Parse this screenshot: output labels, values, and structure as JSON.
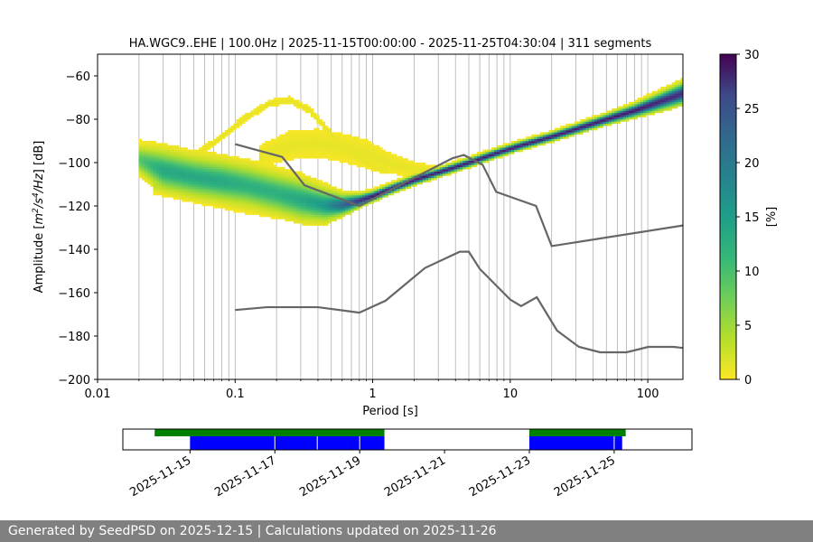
{
  "chart_data": [
    {
      "type": "heatmap",
      "title": "HA.WGC9..EHE | 100.0Hz | 2025-11-15T00:00:00 - 2025-11-25T04:30:04 | 311 segments",
      "xlabel": "Period [s]",
      "ylabel_parts": [
        "Amplitude [",
        "m",
        "2",
        "/",
        "s",
        "4",
        "/",
        "Hz",
        "] [dB]"
      ],
      "xscale": "log",
      "xlim": [
        0.01,
        180
      ],
      "ylim": [
        -200,
        -50
      ],
      "xticks": [
        0.01,
        0.1,
        1,
        10,
        100
      ],
      "xtick_labels": [
        "0.01",
        "0.1",
        "1",
        "10",
        "100"
      ],
      "yticks": [
        -200,
        -180,
        -160,
        -140,
        -120,
        -100,
        -80,
        -60
      ],
      "ytick_labels": [
        "−200",
        "−180",
        "−160",
        "−140",
        "−120",
        "−100",
        "−80",
        "−60"
      ],
      "grid": true,
      "colorbar": {
        "label": "[%]",
        "range": [
          0,
          30
        ],
        "ticks": [
          0,
          5,
          10,
          15,
          20,
          25,
          30
        ],
        "colormap": "viridis_r"
      },
      "noise_model_high": {
        "x": [
          0.1,
          0.22,
          0.32,
          0.8,
          3.8,
          4.6,
          6.3,
          7.9,
          15.4,
          20,
          180
        ],
        "y": [
          -91.5,
          -97.4,
          -110.5,
          -120,
          -98,
          -96.5,
          -101,
          -113.5,
          -120,
          -138.5,
          -129
        ]
      },
      "noise_model_low": {
        "x": [
          0.1,
          0.17,
          0.4,
          0.8,
          1.24,
          2.4,
          4.3,
          5,
          6,
          10,
          12,
          15.6,
          21.9,
          31.6,
          45,
          70,
          101,
          154,
          180
        ],
        "y": [
          -168,
          -166.7,
          -166.7,
          -169.2,
          -163.7,
          -148.6,
          -141.1,
          -141.1,
          -149,
          -163.2,
          -166.2,
          -162.1,
          -177.5,
          -185,
          -187.5,
          -187.5,
          -185,
          -185,
          -185.5
        ]
      },
      "psd_probability": {
        "main_band": {
          "x": [
            0.02,
            0.03,
            0.05,
            0.08,
            0.12,
            0.2,
            0.3,
            0.45,
            0.6,
            0.8,
            1.0,
            1.5,
            2,
            3,
            5,
            8,
            12,
            20,
            30,
            50,
            80,
            120,
            180
          ],
          "y": [
            -98.5,
            -103.5,
            -106.5,
            -108.5,
            -110.5,
            -114,
            -117,
            -119.5,
            -119.5,
            -117.5,
            -115.5,
            -111,
            -108,
            -104.5,
            -100,
            -95.5,
            -92,
            -88,
            -84.5,
            -80,
            -76,
            -72,
            -68
          ],
          "spread": [
            3.5,
            5,
            5,
            5,
            5,
            5,
            5,
            4,
            2.5,
            1.5,
            1.2,
            1.1,
            1.1,
            1.0,
            1.0,
            1.0,
            1.0,
            1.0,
            1.1,
            1.2,
            1.5,
            2,
            2.5
          ],
          "peak_percent": [
            8,
            12,
            12,
            12,
            11,
            11,
            12,
            14,
            20,
            26,
            28,
            28,
            28,
            28,
            28,
            28,
            28,
            28,
            28,
            28,
            28,
            27,
            26
          ]
        },
        "lower_tail": {
          "x": [
            0.025,
            0.05,
            0.1,
            0.2,
            0.3,
            0.45,
            0.6
          ],
          "y": [
            -110,
            -114.5,
            -118.5,
            -122,
            -123,
            -121.5,
            -119
          ],
          "spread": [
            2,
            2,
            2,
            2,
            2,
            2,
            2
          ],
          "peak_percent": [
            3,
            2,
            2,
            2,
            2,
            2,
            3
          ]
        },
        "upper_tail": {
          "x": [
            0.05,
            0.08,
            0.12,
            0.18,
            0.25,
            0.35,
            0.5,
            0.7,
            1.0,
            1.3
          ],
          "y": [
            -97,
            -88,
            -79,
            -72.5,
            -71,
            -76,
            -87,
            -96,
            -102,
            -104
          ],
          "spread": [
            1,
            1,
            1,
            1,
            1,
            1,
            1,
            1,
            1,
            1
          ],
          "peak_percent": [
            1,
            1,
            1,
            1,
            1,
            1,
            1,
            1,
            1,
            1
          ]
        },
        "mid_tail": {
          "x": [
            0.15,
            0.25,
            0.4,
            0.6,
            0.9,
            1.3,
            2,
            3
          ],
          "y": [
            -97,
            -92,
            -91,
            -93,
            -96,
            -100,
            -103,
            -104
          ],
          "spread": [
            3,
            4,
            4,
            4,
            4,
            3,
            2,
            1.5
          ],
          "peak_percent": [
            1,
            1,
            1,
            1,
            1,
            1,
            1,
            1
          ]
        }
      }
    },
    {
      "type": "timeline",
      "xlim": [
        "2025-11-13T10:00:00",
        "2025-11-26T20:00:00"
      ],
      "xticks": [
        "2025-11-15",
        "2025-11-17",
        "2025-11-19",
        "2025-11-21",
        "2025-11-23",
        "2025-11-25"
      ],
      "green_ranges": [
        [
          "2025-11-14T04:00:00",
          "2025-11-19T14:00:00"
        ],
        [
          "2025-11-23T00:00:00",
          "2025-11-25T06:30:00"
        ]
      ],
      "blue_ranges": [
        [
          "2025-11-15T00:00:00",
          "2025-11-19T14:00:00"
        ],
        [
          "2025-11-23T00:00:00",
          "2025-11-25T04:30:04"
        ]
      ],
      "blue_separators": [
        "2025-11-17T00:00:00",
        "2025-11-18T00:00:00",
        "2025-11-19T00:00:00",
        "2025-11-25T00:00:00"
      ],
      "colors": {
        "green": "#008000",
        "blue": "#0000ff"
      }
    }
  ],
  "footer": {
    "text": "Generated by SeedPSD on 2025-12-15 | Calculations updated on 2025-11-26"
  },
  "colors": {
    "noise_model": "#666666",
    "grid": "#b0b0b0",
    "footer_bg": "#808080"
  }
}
